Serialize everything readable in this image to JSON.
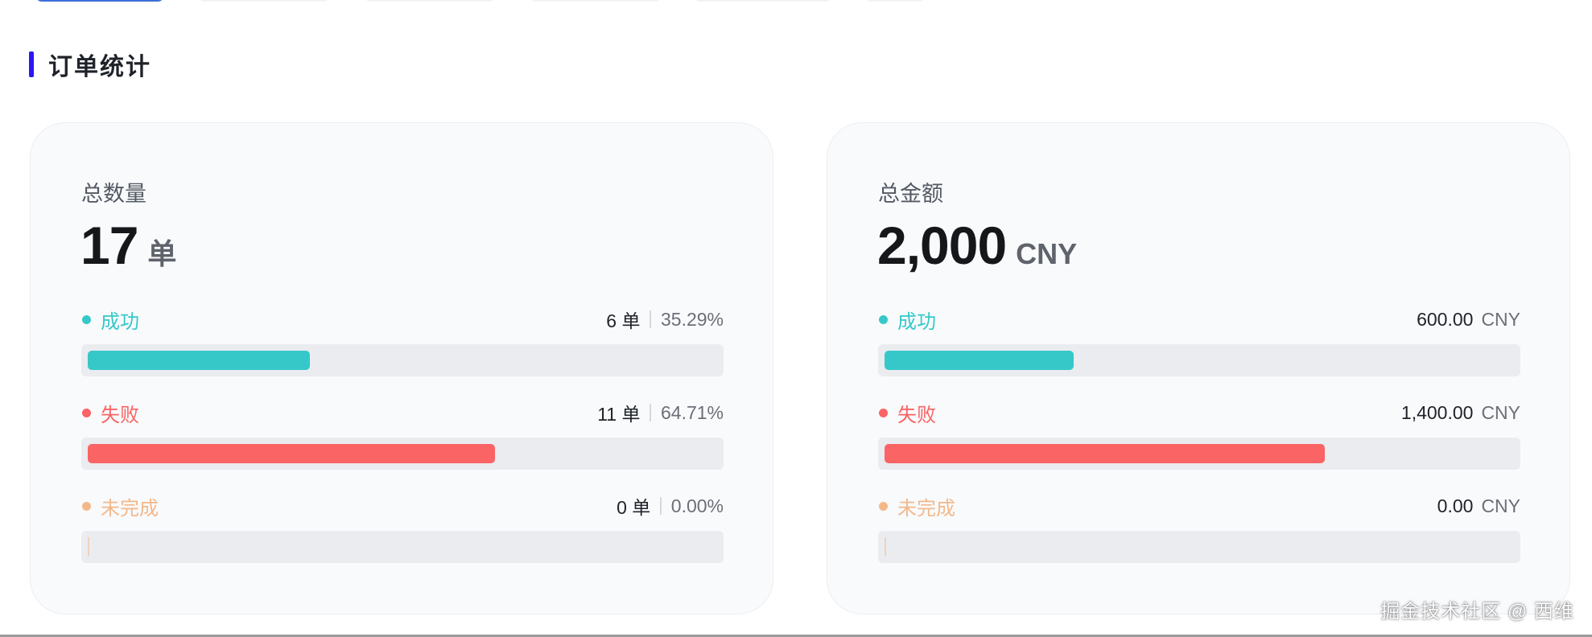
{
  "section": {
    "title": "订单统计",
    "accent_color": "#2b18f0"
  },
  "colors": {
    "success": "#36c8c9",
    "failed": "#fa6464",
    "incomplete": "#f3b88a",
    "track": "#eaecf0"
  },
  "count_card": {
    "label": "总数量",
    "value": "17",
    "unit": "单",
    "rows": [
      {
        "label": "成功",
        "count": "6 单",
        "percent": "35.29%",
        "fraction": 0.3529,
        "status": "success"
      },
      {
        "label": "失败",
        "count": "11 单",
        "percent": "64.71%",
        "fraction": 0.6471,
        "status": "failed"
      },
      {
        "label": "未完成",
        "count": "0 单",
        "percent": "0.00%",
        "fraction": 0.0,
        "status": "incomplete"
      }
    ]
  },
  "amount_card": {
    "label": "总金额",
    "value": "2,000",
    "unit": "CNY",
    "rows": [
      {
        "label": "成功",
        "amount": "600.00",
        "currency": "CNY",
        "fraction": 0.3,
        "status": "success"
      },
      {
        "label": "失败",
        "amount": "1,400.00",
        "currency": "CNY",
        "fraction": 0.7,
        "status": "failed"
      },
      {
        "label": "未完成",
        "amount": "0.00",
        "currency": "CNY",
        "fraction": 0.0,
        "status": "incomplete"
      }
    ]
  },
  "watermark": "掘金技术社区 @ 西维"
}
